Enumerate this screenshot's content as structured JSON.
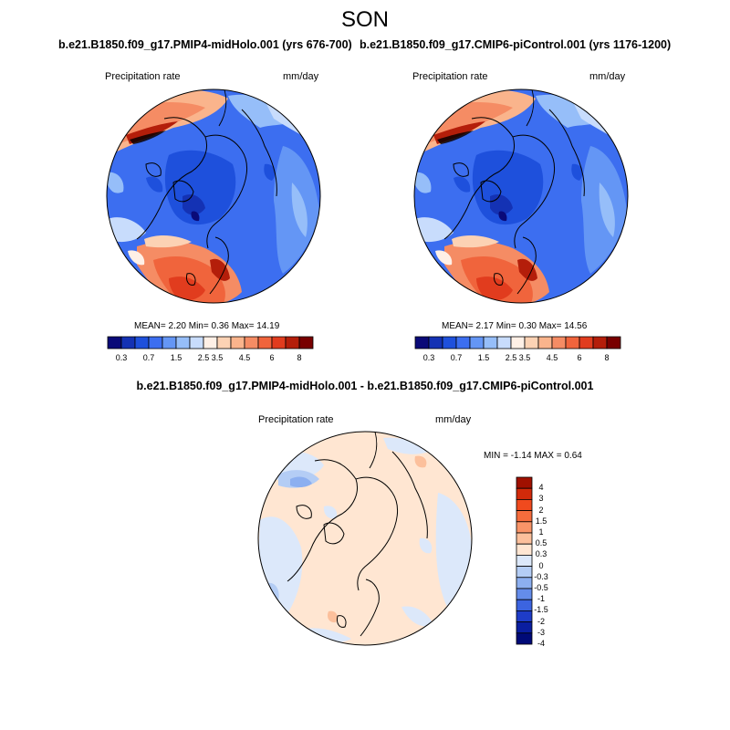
{
  "season": "SON",
  "panels": [
    {
      "title": "b.e21.B1850.f09_g17.PMIP4-midHolo.001 (yrs 676-700)",
      "variable": "Precipitation rate",
      "units": "mm/day",
      "stats": "MEAN=   2.20  Min=   0.36  Max=  14.19",
      "colorbar_ticks": [
        "0.3",
        "0.7",
        "1.5",
        "2.5",
        "3.5",
        "4.5",
        "6",
        "8"
      ]
    },
    {
      "title": "b.e21.B1850.f09_g17.CMIP6-piControl.001 (yrs 1176-1200)",
      "variable": "Precipitation rate",
      "units": "mm/day",
      "stats": "MEAN=   2.17  Min=   0.30  Max=  14.56",
      "colorbar_ticks": [
        "0.3",
        "0.7",
        "1.5",
        "2.5",
        "3.5",
        "4.5",
        "6",
        "8"
      ]
    }
  ],
  "difference": {
    "title": "b.e21.B1850.f09_g17.PMIP4-midHolo.001 - b.e21.B1850.f09_g17.CMIP6-piControl.001",
    "variable": "Precipitation rate",
    "units": "mm/day",
    "stats": "MIN =  -1.14 MAX =   0.64",
    "colorbar_ticks": [
      "4",
      "3",
      "2",
      "1.5",
      "1",
      "0.5",
      "0.3",
      "0",
      "-0.3",
      "-0.5",
      "-1",
      "-1.5",
      "-2",
      "-3",
      "-4"
    ]
  },
  "colors": {
    "abs_scale": [
      "#0a0a78",
      "#1432b4",
      "#1e50dc",
      "#3c6ef0",
      "#6496f5",
      "#96bef9",
      "#c8dcfc",
      "#fff0e6",
      "#fcd2b4",
      "#fab48c",
      "#f58c64",
      "#f0643c",
      "#e13c1e",
      "#b41e0a",
      "#780000"
    ],
    "diff_scale": [
      "#a01000",
      "#d22a0a",
      "#f04a1e",
      "#f66c3c",
      "#f99468",
      "#fcc09c",
      "#ffe6d2",
      "#dce8fa",
      "#b4cdf5",
      "#8caff0",
      "#648cea",
      "#3c64e0",
      "#1e3cc8",
      "#0a1ea0",
      "#000a78"
    ]
  }
}
